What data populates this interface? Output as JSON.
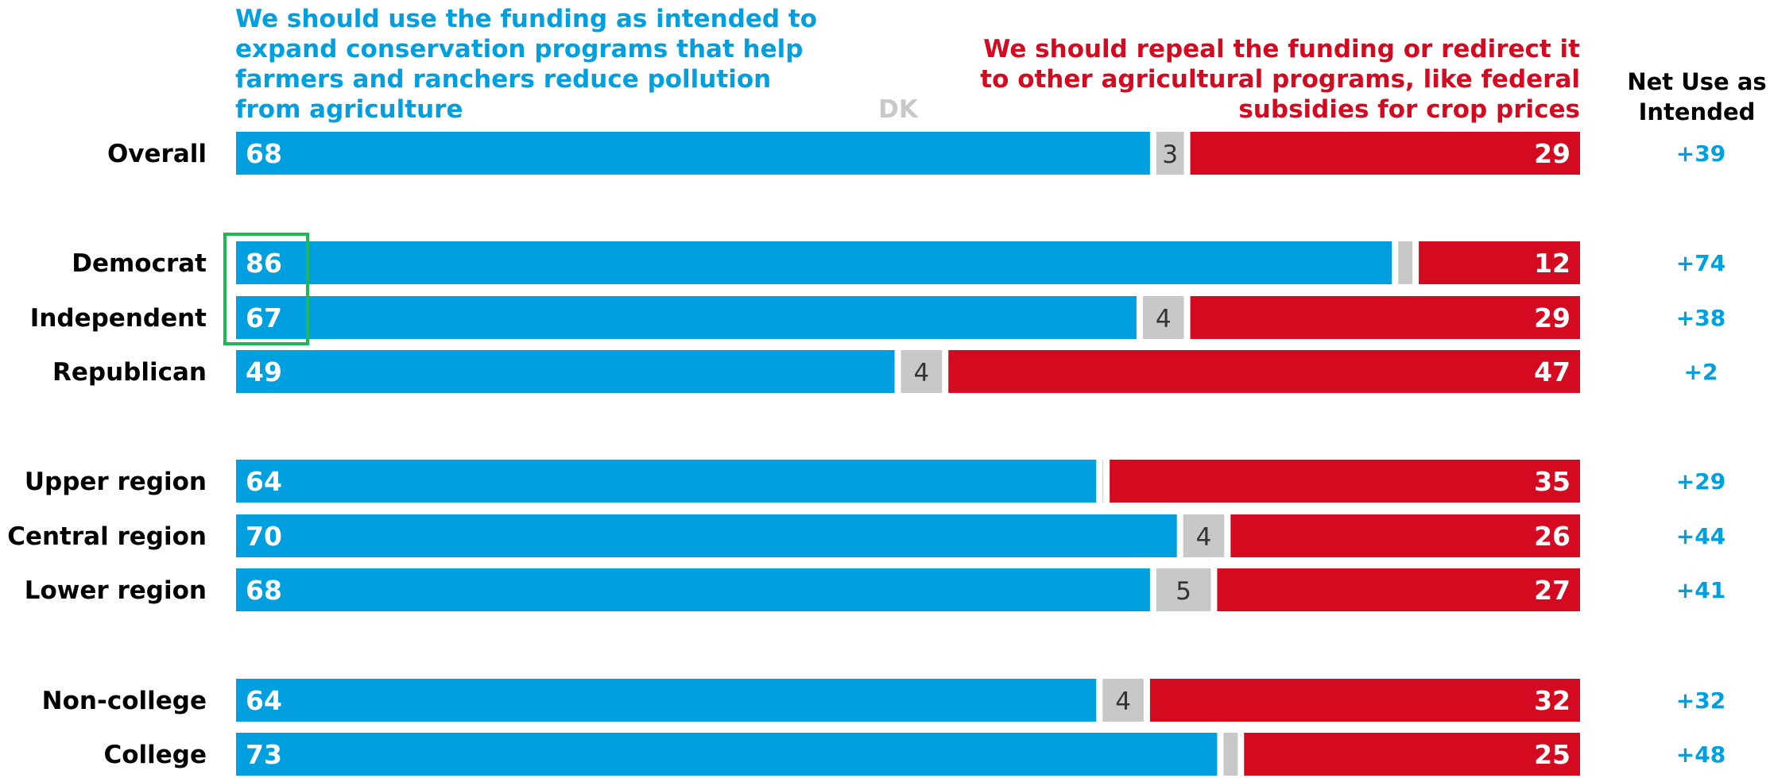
{
  "chart_data": {
    "type": "bar",
    "stacked": true,
    "orientation": "horizontal",
    "headers": {
      "use_label": "We should use the funding as intended to expand conservation programs that help farmers and ranchers reduce pollution from agriculture",
      "repeal_label": "We should repeal the funding or redirect it to other agricultural programs, like federal subsidies for crop prices",
      "dk_label": "DK",
      "net_label": "Net Use as Intended"
    },
    "categories": [
      "Overall",
      "Democrat",
      "Independent",
      "Republican",
      "Upper region",
      "Central region",
      "Lower region",
      "Non-college",
      "College"
    ],
    "groups": [
      [
        "Overall"
      ],
      [
        "Democrat",
        "Independent",
        "Republican"
      ],
      [
        "Upper region",
        "Central region",
        "Lower region"
      ],
      [
        "Non-college",
        "College"
      ]
    ],
    "series": [
      {
        "name": "We should use the funding as intended to expand conservation programs that help farmers and ranchers reduce pollution from agriculture",
        "values": [
          68,
          86,
          67,
          49,
          64,
          70,
          68,
          64,
          73
        ]
      },
      {
        "name": "DK",
        "values": [
          3,
          2,
          4,
          4,
          1,
          4,
          5,
          4,
          2
        ]
      },
      {
        "name": "We should repeal the funding or redirect it to other agricultural programs, like federal subsidies for crop prices",
        "values": [
          29,
          12,
          29,
          47,
          35,
          26,
          27,
          32,
          25
        ]
      }
    ],
    "dk_labels": [
      "3",
      "",
      "4",
      "4",
      "",
      "4",
      "5",
      "4",
      ""
    ],
    "net": [
      "+39",
      "+74",
      "+38",
      "+2",
      "+29",
      "+44",
      "+41",
      "+32",
      "+48"
    ],
    "highlight": [
      "Democrat",
      "Independent"
    ],
    "xlim": [
      0,
      100
    ],
    "colors": {
      "use": "#009FDF",
      "dk": "#C8C8C8",
      "repeal": "#D40A20",
      "net": "#009FDF",
      "highlight": "#1DB954"
    }
  }
}
